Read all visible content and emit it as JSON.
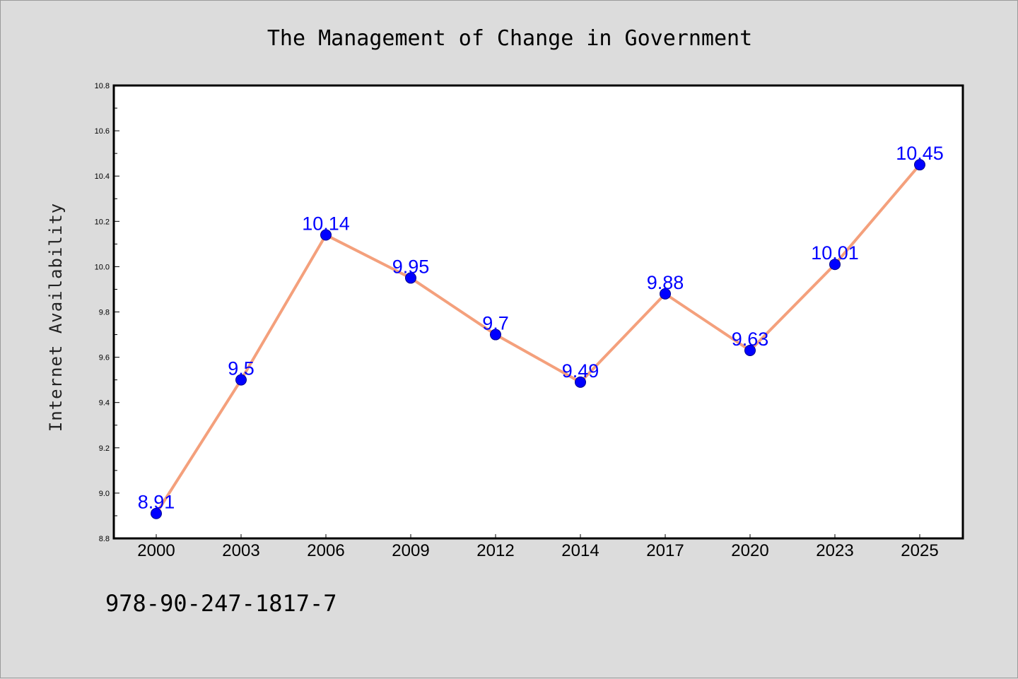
{
  "chart_data": {
    "type": "line",
    "title": "The Management of Change in Government",
    "xlabel": "",
    "ylabel": "Internet Availability",
    "categories": [
      "2000",
      "2003",
      "2006",
      "2009",
      "2012",
      "2014",
      "2017",
      "2020",
      "2023",
      "2025"
    ],
    "series": [
      {
        "values": [
          8.91,
          9.5,
          10.14,
          9.95,
          9.7,
          9.49,
          9.88,
          9.63,
          10.01,
          10.45
        ],
        "labels": [
          "8.91",
          "9.5",
          "10.14",
          "9.95",
          "9.7",
          "9.49",
          "9.88",
          "9.63",
          "10.01",
          "10.45"
        ],
        "line_color": "#f4a07c",
        "marker_color": "#0000ff"
      }
    ],
    "ylim": [
      8.8,
      10.8
    ],
    "yticks": [
      "8.8",
      "9.0",
      "9.2",
      "9.4",
      "9.6",
      "9.8",
      "10.0",
      "10.2",
      "10.4",
      "10.6",
      "10.8"
    ],
    "grid": false,
    "legend": "none",
    "background_color": "#dcdcdc",
    "plot_background": "#ffffff"
  },
  "footer": {
    "isbn": "978-90-247-1817-7"
  }
}
